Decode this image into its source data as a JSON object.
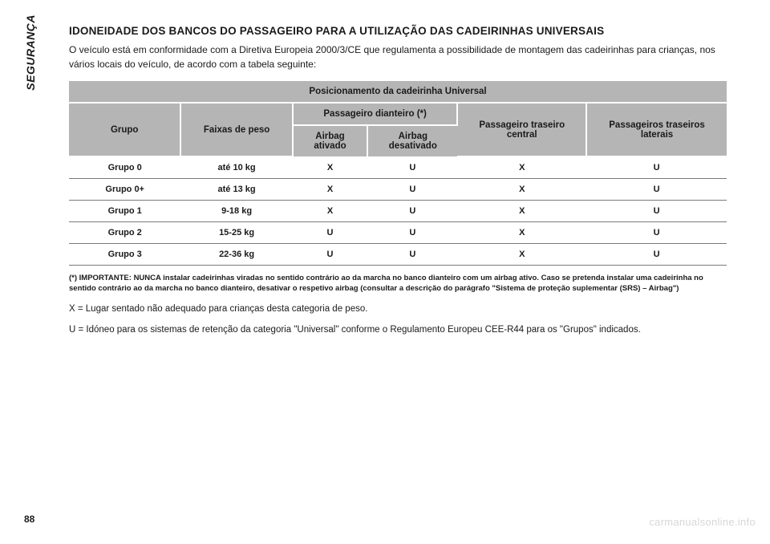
{
  "side_tab": "SEGURANÇA",
  "page_number": "88",
  "title": "IDONEIDADE DOS BANCOS DO PASSAGEIRO PARA A UTILIZAÇÃO DAS CADEIRINHAS UNIVERSAIS",
  "intro": "O veículo está em conformidade com a Diretiva Europeia 2000/3/CE que regulamenta a possibilidade de montagem das cadeirinhas para crianças, nos vários locais do veículo, de acordo com a tabela seguinte:",
  "table": {
    "header_span": "Posicionamento da cadeirinha Universal",
    "col_group": "Grupo",
    "col_weight": "Faixas de peso",
    "col_front_span": "Passageiro dianteiro (*)",
    "col_airbag_on": "Airbag ativado",
    "col_airbag_off": "Airbag desativado",
    "col_rear_center": "Passageiro traseiro central",
    "col_rear_side": "Passageiros traseiros laterais",
    "rows": [
      {
        "g": "Grupo 0",
        "w": "até 10 kg",
        "c1": "X",
        "c2": "U",
        "c3": "X",
        "c4": "U"
      },
      {
        "g": "Grupo 0+",
        "w": "até 13 kg",
        "c1": "X",
        "c2": "U",
        "c3": "X",
        "c4": "U"
      },
      {
        "g": "Grupo 1",
        "w": "9-18 kg",
        "c1": "X",
        "c2": "U",
        "c3": "X",
        "c4": "U"
      },
      {
        "g": "Grupo 2",
        "w": "15-25 kg",
        "c1": "U",
        "c2": "U",
        "c3": "X",
        "c4": "U"
      },
      {
        "g": "Grupo 3",
        "w": "22-36 kg",
        "c1": "U",
        "c2": "U",
        "c3": "X",
        "c4": "U"
      }
    ]
  },
  "footnote": "(*) IMPORTANTE: NUNCA instalar cadeirinhas viradas no sentido contrário ao da marcha no banco dianteiro com um airbag ativo. Caso se pretenda instalar uma cadeirinha no sentido contrário ao da marcha no banco dianteiro, desativar o respetivo airbag (consultar a descrição do parágrafo \"Sistema de proteção suplementar (SRS) – Airbag\")",
  "legend_x": "X = Lugar sentado não adequado para crianças desta categoria de peso.",
  "legend_u": "U = Idóneo para os sistemas de retenção da categoria \"Universal\" conforme o Regulamento Europeu CEE-R44 para os \"Grupos\" indicados.",
  "watermark": "carmanualsonline.info",
  "colors": {
    "header_bg": "#b5b5b5",
    "row_border": "#7a7a7a",
    "text": "#1a1a1a",
    "watermark": "#d7d7d7",
    "bg": "#ffffff"
  }
}
